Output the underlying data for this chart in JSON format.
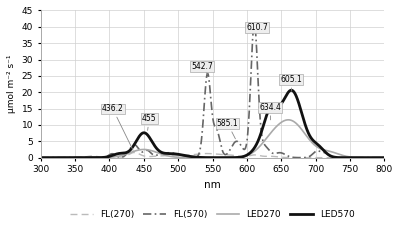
{
  "title": "",
  "xlabel": "nm",
  "ylabel": "μmol m⁻² s⁻¹",
  "xlim": [
    300,
    800
  ],
  "ylim": [
    0,
    45
  ],
  "yticks": [
    0,
    5,
    10,
    15,
    20,
    25,
    30,
    35,
    40,
    45
  ],
  "xticks": [
    300,
    350,
    400,
    450,
    500,
    550,
    600,
    650,
    700,
    750,
    800
  ],
  "legend": [
    {
      "label": "FL(270)",
      "color": "#bbbbbb",
      "lw": 1.0
    },
    {
      "label": "FL(570)",
      "color": "#666666",
      "lw": 1.2
    },
    {
      "label": "LED270",
      "color": "#aaaaaa",
      "lw": 1.2
    },
    {
      "label": "LED570",
      "color": "#111111",
      "lw": 2.0
    }
  ],
  "background_color": "#ffffff",
  "grid_color": "#d0d0d0"
}
